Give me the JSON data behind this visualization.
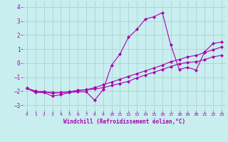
{
  "background_color": "#c8eef0",
  "grid_color": "#aacccc",
  "line_color": "#aa00aa",
  "xlabel": "Windchill (Refroidissement éolien,°C)",
  "xlim": [
    -0.5,
    23.5
  ],
  "ylim": [
    -3.4,
    4.4
  ],
  "yticks": [
    -3,
    -2,
    -1,
    0,
    1,
    2,
    3,
    4
  ],
  "xticks": [
    0,
    1,
    2,
    3,
    4,
    5,
    6,
    7,
    8,
    9,
    10,
    11,
    12,
    13,
    14,
    15,
    16,
    17,
    18,
    19,
    20,
    21,
    22,
    23
  ],
  "series": [
    {
      "x": [
        0,
        1,
        2,
        3,
        4,
        5,
        6,
        7,
        8,
        9,
        10,
        11,
        12,
        13,
        14,
        15,
        16,
        17,
        18,
        19,
        20,
        21,
        22,
        23
      ],
      "y": [
        -1.8,
        -2.1,
        -2.1,
        -2.35,
        -2.25,
        -2.1,
        -2.05,
        -2.05,
        -2.65,
        -1.9,
        -0.15,
        0.65,
        1.85,
        2.4,
        3.15,
        3.3,
        3.6,
        1.3,
        -0.45,
        -0.3,
        -0.5,
        0.8,
        1.4,
        1.5
      ]
    },
    {
      "x": [
        0,
        1,
        2,
        3,
        4,
        5,
        6,
        7,
        8,
        9,
        10,
        11,
        12,
        13,
        14,
        15,
        16,
        17,
        18,
        19,
        20,
        21,
        22,
        23
      ],
      "y": [
        -1.8,
        -2.0,
        -2.05,
        -2.15,
        -2.1,
        -2.05,
        -1.95,
        -1.9,
        -1.75,
        -1.55,
        -1.35,
        -1.15,
        -0.95,
        -0.75,
        -0.55,
        -0.35,
        -0.15,
        0.1,
        0.25,
        0.45,
        0.55,
        0.75,
        0.95,
        1.15
      ]
    },
    {
      "x": [
        0,
        1,
        2,
        3,
        4,
        5,
        6,
        7,
        8,
        9,
        10,
        11,
        12,
        13,
        14,
        15,
        16,
        17,
        18,
        19,
        20,
        21,
        22,
        23
      ],
      "y": [
        -1.8,
        -2.0,
        -2.05,
        -2.1,
        -2.1,
        -2.05,
        -1.95,
        -1.9,
        -1.85,
        -1.75,
        -1.6,
        -1.45,
        -1.3,
        -1.05,
        -0.85,
        -0.65,
        -0.45,
        -0.25,
        -0.05,
        0.05,
        0.1,
        0.25,
        0.45,
        0.55
      ]
    }
  ]
}
